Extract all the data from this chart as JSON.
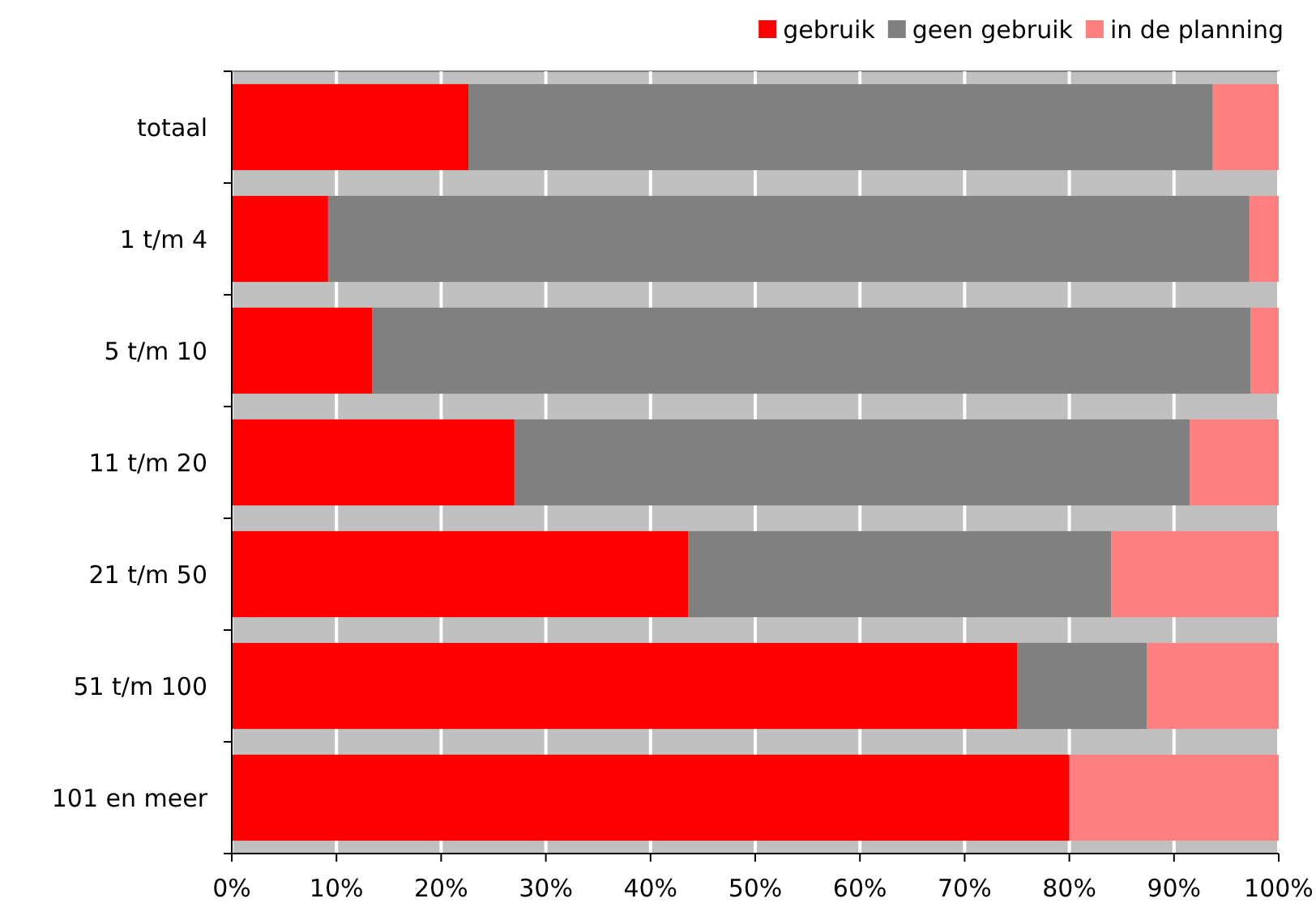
{
  "chart_data": {
    "type": "bar",
    "orientation": "horizontal",
    "stacked": true,
    "categories": [
      "totaal",
      "1 t/m 4",
      "5 t/m 10",
      "11 t/m 20",
      "21 t/m 50",
      "51 t/m 100",
      "101 en meer"
    ],
    "series": [
      {
        "name": "gebruik",
        "color": "#ff0000",
        "values": [
          22.6,
          9.2,
          13.4,
          27.0,
          43.6,
          75.0,
          80.0
        ]
      },
      {
        "name": "geen gebruik",
        "color": "#808080",
        "values": [
          71.1,
          88.0,
          83.9,
          64.5,
          40.4,
          12.4,
          0
        ]
      },
      {
        "name": "in de planning",
        "color": "#ff8080",
        "values": [
          6.3,
          2.8,
          2.7,
          8.5,
          16.0,
          12.6,
          20.0
        ]
      }
    ],
    "xlim": [
      0,
      100
    ],
    "xticks": [
      {
        "value": 0,
        "label": "0%"
      },
      {
        "value": 10,
        "label": "10%"
      },
      {
        "value": 20,
        "label": "20%"
      },
      {
        "value": 30,
        "label": "30%"
      },
      {
        "value": 40,
        "label": "40%"
      },
      {
        "value": 50,
        "label": "50%"
      },
      {
        "value": 60,
        "label": "60%"
      },
      {
        "value": 70,
        "label": "70%"
      },
      {
        "value": 80,
        "label": "80%"
      },
      {
        "value": 90,
        "label": "90%"
      },
      {
        "value": 100,
        "label": "100%"
      }
    ],
    "grid": "x",
    "legend": "top right"
  }
}
